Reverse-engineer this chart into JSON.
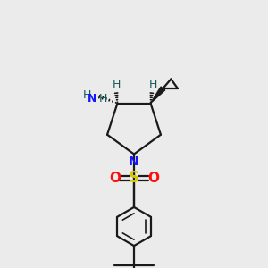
{
  "bg_color": "#ebebeb",
  "bond_color": "#1a1a1a",
  "N_color": "#1414ff",
  "O_color": "#ff0d0d",
  "S_color": "#d4c800",
  "H_color": "#145a5a",
  "figsize": [
    3.0,
    3.0
  ],
  "dpi": 100,
  "xlim": [
    0,
    10
  ],
  "ylim": [
    0,
    10
  ]
}
